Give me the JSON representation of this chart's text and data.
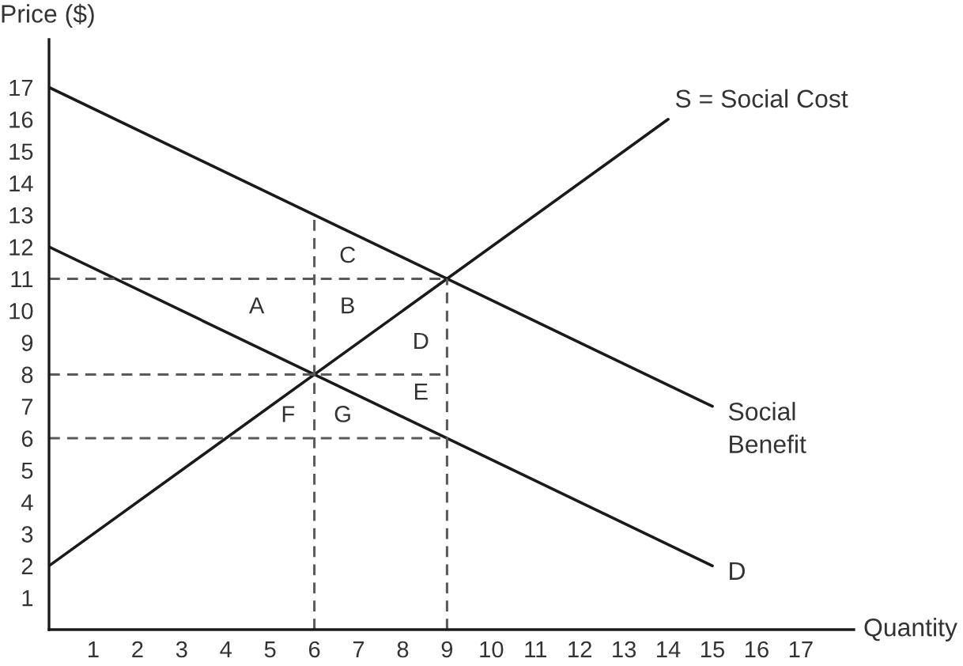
{
  "chart_data": {
    "type": "line",
    "xlabel": "Quantity",
    "ylabel": "Price ($)",
    "xlim": [
      0,
      18.2
    ],
    "ylim": [
      0,
      18.5
    ],
    "xticks": [
      1,
      2,
      3,
      4,
      5,
      6,
      7,
      8,
      9,
      10,
      11,
      12,
      13,
      14,
      15,
      16,
      17
    ],
    "yticks": [
      1,
      2,
      3,
      4,
      5,
      6,
      7,
      8,
      9,
      10,
      11,
      12,
      13,
      14,
      15,
      16,
      17
    ],
    "grid": false,
    "line_style": "solid",
    "series": [
      {
        "name": "S = Social Cost",
        "color": "#1a1a1a",
        "x": [
          0,
          14
        ],
        "values": [
          2,
          16
        ]
      },
      {
        "name": "Social\nBenefit",
        "color": "#1a1a1a",
        "x": [
          0,
          15
        ],
        "values": [
          17,
          7
        ]
      },
      {
        "name": "D",
        "color": "#1a1a1a",
        "x": [
          0,
          15
        ],
        "values": [
          12,
          2
        ]
      },
      {
        "color": "#5a5a5a",
        "x": [
          0,
          9
        ],
        "values": [
          11,
          11
        ],
        "line_style": "dashed"
      },
      {
        "color": "#5a5a5a",
        "x": [
          0,
          9
        ],
        "values": [
          8,
          8
        ],
        "line_style": "dashed"
      },
      {
        "color": "#5a5a5a",
        "x": [
          0,
          9
        ],
        "values": [
          6,
          6
        ],
        "line_style": "dashed"
      },
      {
        "color": "#5a5a5a",
        "x": [
          6,
          6
        ],
        "values": [
          0,
          13
        ],
        "line_style": "dashed"
      },
      {
        "color": "#5a5a5a",
        "x": [
          9,
          9
        ],
        "values": [
          0,
          11
        ],
        "line_style": "dashed"
      }
    ],
    "annotations": [
      "A",
      "B",
      "C",
      "D",
      "E",
      "F",
      "G"
    ]
  }
}
